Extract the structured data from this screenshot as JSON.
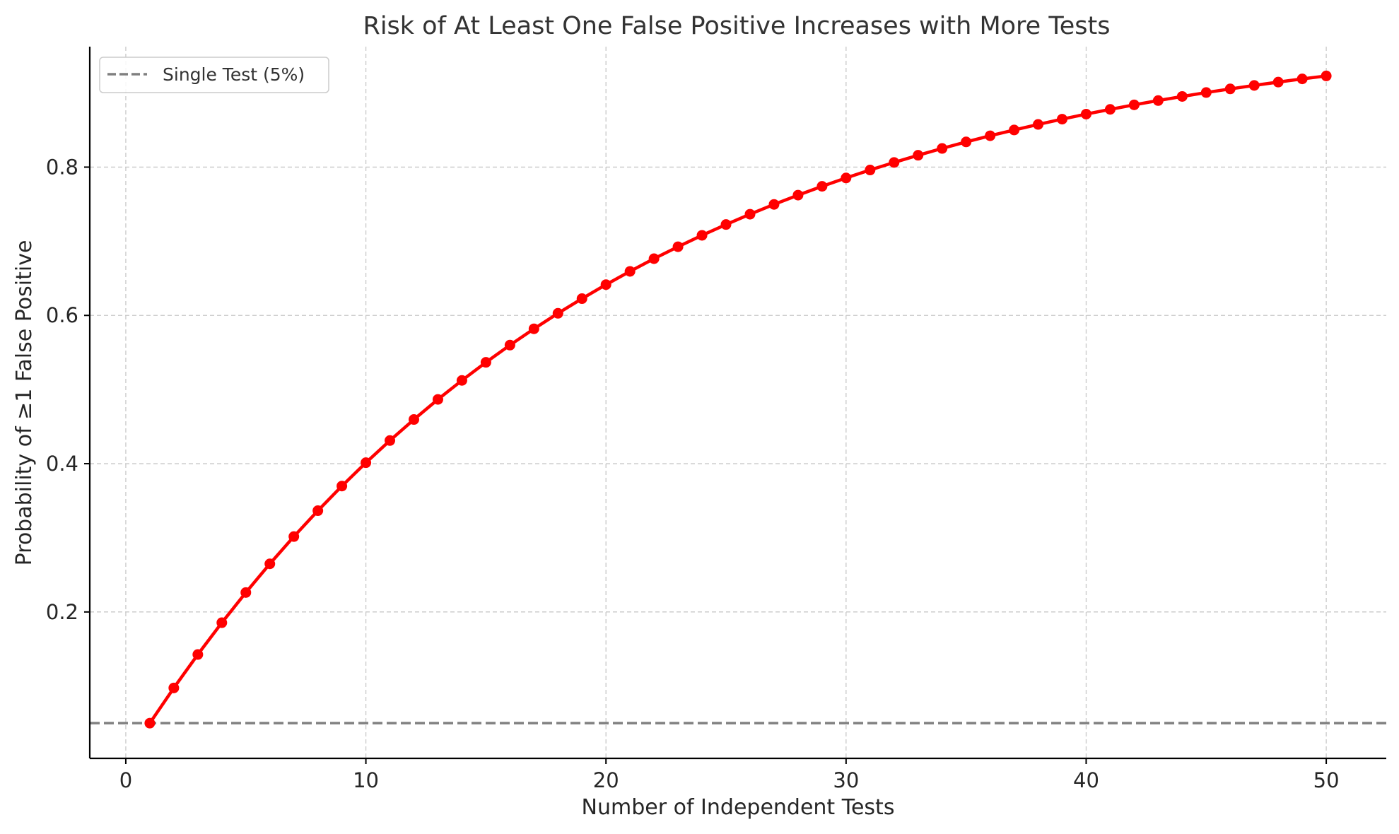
{
  "chart_data": {
    "type": "line",
    "title": "Risk of At Least One False Positive Increases with More Tests",
    "xlabel": "Number of Independent Tests",
    "ylabel": "Probability of ≥1 False Positive",
    "xlim": [
      -1.5,
      52.5
    ],
    "ylim": [
      0.0025,
      0.9625
    ],
    "xticks": [
      0,
      10,
      20,
      30,
      40,
      50
    ],
    "xtick_labels": [
      "0",
      "10",
      "20",
      "30",
      "40",
      "50"
    ],
    "yticks": [
      0.2,
      0.4,
      0.6,
      0.8
    ],
    "ytick_labels": [
      "0.2",
      "0.4",
      "0.6",
      "0.8"
    ],
    "grid": true,
    "legend_position": "top-left",
    "colors": {
      "series": "#ff0000",
      "reference": "#808080"
    },
    "series": [
      {
        "x": [
          1,
          2,
          3,
          4,
          5,
          6,
          7,
          8,
          9,
          10,
          11,
          12,
          13,
          14,
          15,
          16,
          17,
          18,
          19,
          20,
          21,
          22,
          23,
          24,
          25,
          26,
          27,
          28,
          29,
          30,
          31,
          32,
          33,
          34,
          35,
          36,
          37,
          38,
          39,
          40,
          41,
          42,
          43,
          44,
          45,
          46,
          47,
          48,
          49,
          50
        ],
        "values": [
          0.05,
          0.0975,
          0.1426,
          0.1855,
          0.2262,
          0.2649,
          0.3017,
          0.3366,
          0.3698,
          0.4013,
          0.4312,
          0.4596,
          0.4867,
          0.5123,
          0.5367,
          0.5599,
          0.5819,
          0.6028,
          0.6226,
          0.6415,
          0.6594,
          0.6765,
          0.6926,
          0.708,
          0.7226,
          0.7365,
          0.7497,
          0.7622,
          0.7741,
          0.7854,
          0.7961,
          0.8063,
          0.816,
          0.8252,
          0.834,
          0.8423,
          0.8501,
          0.8576,
          0.8647,
          0.8715,
          0.8779,
          0.884,
          0.8898,
          0.8953,
          0.9006,
          0.9055,
          0.9102,
          0.9147,
          0.919,
          0.923
        ]
      }
    ],
    "reference_line": {
      "name": "Single Test (5%)",
      "y": 0.05,
      "style": "dashed"
    }
  }
}
